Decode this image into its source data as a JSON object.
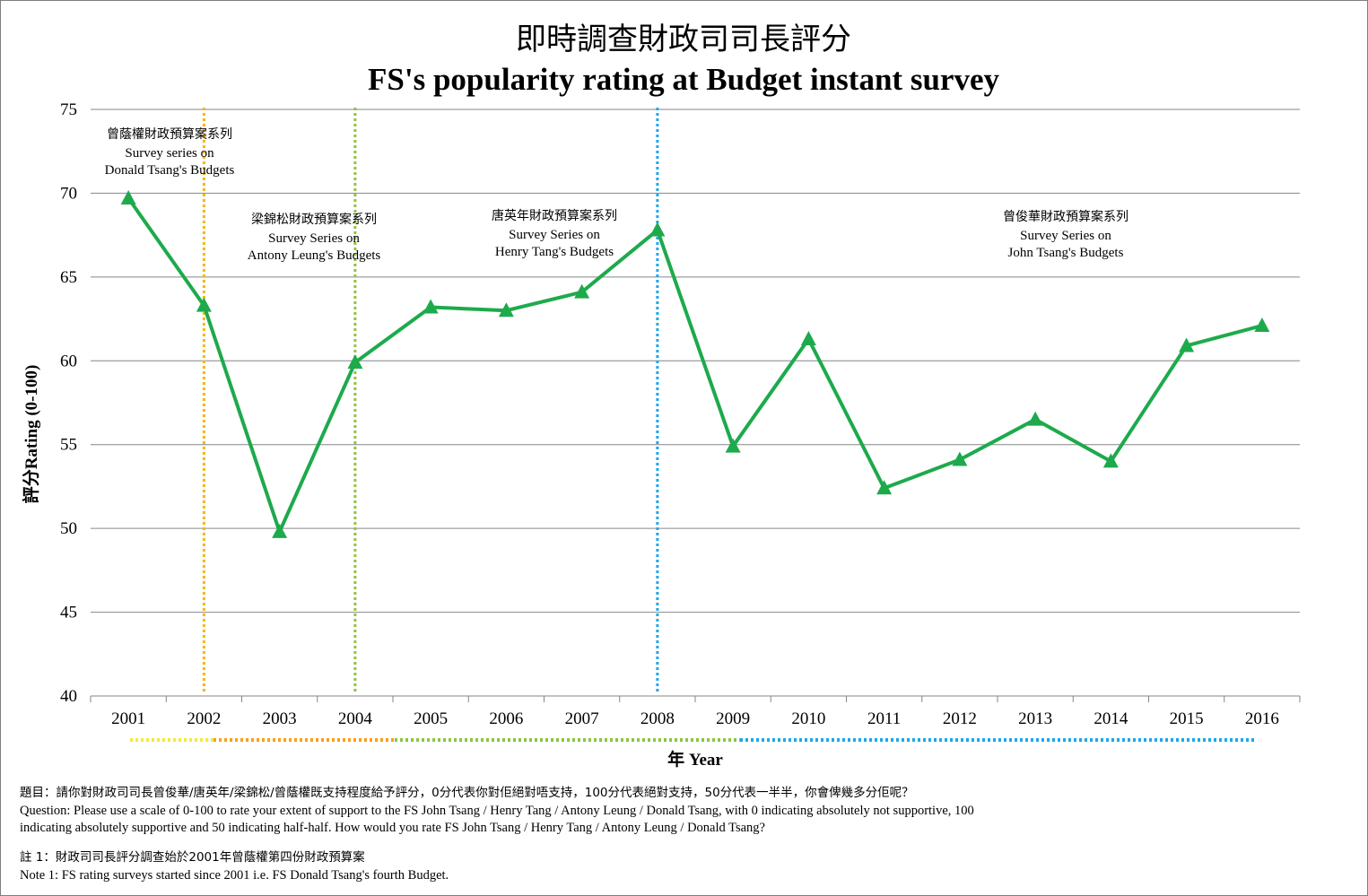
{
  "chart_data": {
    "type": "line",
    "title_zh": "即時調查財政司司長評分",
    "title_en": "FS's popularity rating at Budget instant survey",
    "xlabel": "年 Year",
    "ylabel": "評分Rating (0-100)",
    "ylim": [
      40,
      75
    ],
    "yticks": [
      "40",
      "45",
      "50",
      "55",
      "60",
      "65",
      "70",
      "75"
    ],
    "grid": "horizontal",
    "categories": [
      "2001",
      "2002",
      "2003",
      "2004",
      "2005",
      "2006",
      "2007",
      "2008",
      "2009",
      "2010",
      "2011",
      "2012",
      "2013",
      "2014",
      "2015",
      "2016"
    ],
    "series": [
      {
        "values": [
          69.7,
          63.3,
          49.8,
          59.9,
          63.2,
          63.0,
          64.1,
          67.8,
          54.9,
          61.3,
          52.4,
          54.1,
          56.5,
          54.0,
          60.9,
          62.1
        ],
        "color": "#1daa4c",
        "marker": "triangle"
      }
    ],
    "dividers": [
      {
        "x": "2002",
        "color": "#f5b800"
      },
      {
        "x": "2004",
        "color": "#8cc63f"
      },
      {
        "x": "2008",
        "color": "#1ea7ec"
      }
    ],
    "annotations": [
      {
        "zh": "曾蔭權財政預算案系列",
        "en1": "Survey   series on",
        "en2": "Donald Tsang's Budgets"
      },
      {
        "zh": "梁錦松財政預算案系列",
        "en1": "Survey Series on",
        "en2": "Antony Leung's Budgets"
      },
      {
        "zh": "唐英年財政預算案系列",
        "en1": "Survey Series on",
        "en2": "Henry Tang's Budgets"
      },
      {
        "zh": "曾俊華財政預算案系列",
        "en1": "Survey Series on",
        "en2": "John Tsang's Budgets"
      }
    ],
    "period_bar_colors": [
      "#f0ea3c",
      "#f7a020",
      "#8cc63f",
      "#1ea7ec"
    ]
  },
  "notes": {
    "question_zh": "題目：請你對財政司司長曾俊華/唐英年/梁錦松/曾蔭權既支持程度給予評分，0分代表你對佢絕對唔支持，100分代表絕對支持，50分代表一半半，你會俾幾多分佢呢？",
    "question_en1": "Question: Please use a scale of 0-100 to rate your extent of support to the FS  John Tsang  / Henry Tang  / Antony Leung  / Donald Tsang, with 0 indicating absolutely not supportive, 100",
    "question_en2": "indicating absolutely supportive and 50 indicating half-half. How would you rate FS John Tsang  / Henry Tang  / Antony Leung / Donald Tsang?",
    "note_zh": "註 1：財政司司長評分調查始於2001年曾蔭權第四份財政預算案",
    "note_en": "Note 1: FS rating surveys started since 2001 i.e. FS Donald Tsang's  fourth Budget."
  }
}
